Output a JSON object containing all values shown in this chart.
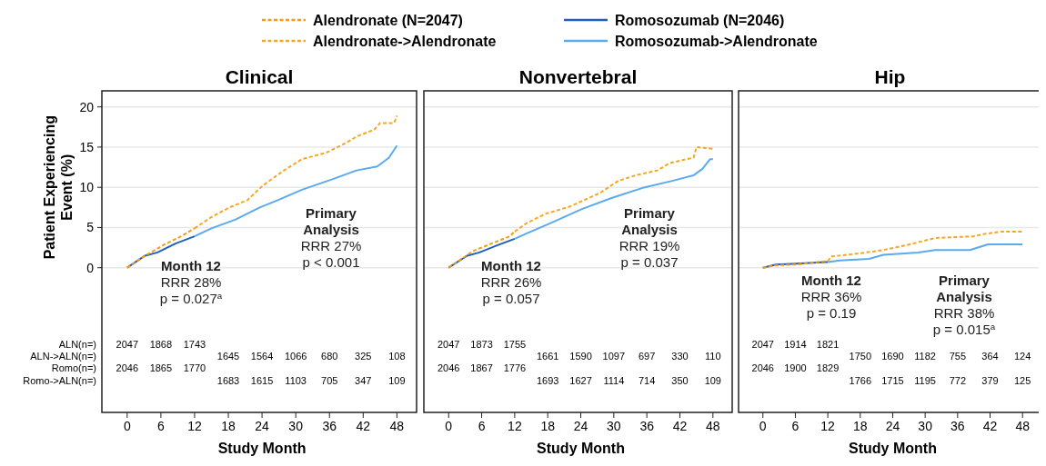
{
  "chart_data": [
    {
      "type": "line",
      "title": "Clinical",
      "xlabel": "Study Month",
      "ylabel": "Patient Experiencing Event (%)",
      "xlim": [
        -4.5,
        51.5
      ],
      "ylim": [
        -18,
        22
      ],
      "xticks": [
        0,
        6,
        12,
        18,
        24,
        30,
        36,
        42,
        48
      ],
      "yticks": [
        0,
        5,
        10,
        15,
        20
      ],
      "grid": "y",
      "legend": "top",
      "series": [
        {
          "name": "Alendronate (N=2047)",
          "color": "#f39c12",
          "line_style": "dashed",
          "x": [
            0,
            3.2,
            6.4,
            9.6,
            12
          ],
          "values": [
            0,
            1.5,
            2.8,
            3.9,
            4.9
          ]
        },
        {
          "name": "Alendronate->Alendronate",
          "color": "#f5a623",
          "line_style": "dashed",
          "x": [
            12,
            15,
            18.2,
            21.4,
            24.1,
            27.9,
            31.1,
            35.4,
            38.6,
            40.8,
            44,
            45,
            47.5,
            48
          ],
          "values": [
            4.9,
            6.3,
            7.5,
            8.4,
            10.2,
            12.1,
            13.5,
            14.3,
            15.4,
            16.3,
            17.2,
            18,
            18,
            18.9
          ]
        },
        {
          "name": "Romosozumab (N=2046)",
          "color": "#1f5fbf",
          "line_style": "solid",
          "x": [
            0,
            3.2,
            5.4,
            8.6,
            12
          ],
          "values": [
            0,
            1.5,
            1.9,
            3,
            3.9
          ]
        },
        {
          "name": "Romosozumab->Alendronate",
          "color": "#5aaaf0",
          "line_style": "solid",
          "x": [
            12,
            15,
            19.3,
            23.6,
            26.8,
            31.1,
            36.5,
            40.8,
            44.5,
            46.6,
            48
          ],
          "values": [
            3.9,
            4.9,
            6,
            7.5,
            8.4,
            9.7,
            11,
            12.1,
            12.6,
            13.7,
            15.2
          ]
        }
      ],
      "annotations": [
        "Month 12\nRRR 28%\np = 0.027$^{a}$",
        "Primary\nAnalysis\nRRR 27%\np < 0.001",
        "ALN(n=)",
        "ALN->ALN(n=)",
        "Romo(n=)",
        "Romo->ALN(n=)",
        "2047 1868 1743",
        "1645 1564 1066 680 325 108",
        "2046 1865 1770",
        "1683 1615 1103 705 347 109"
      ]
    },
    {
      "type": "line",
      "title": "Nonvertebral",
      "xlabel": "Study Month",
      "xlim": [
        -4.5,
        51.5
      ],
      "ylim": [
        -18,
        22
      ],
      "xticks": [
        0,
        6,
        12,
        18,
        24,
        30,
        36,
        42,
        48
      ],
      "yticks": [
        0,
        5,
        10,
        15,
        20
      ],
      "grid": "y",
      "tick_labels": "x",
      "series": [
        {
          "color": "#f39c12",
          "line_style": "dashed",
          "x": [
            0,
            4.5,
            7.8,
            11.1,
            12
          ],
          "values": [
            0,
            2.1,
            3,
            3.9,
            4.5
          ]
        },
        {
          "color": "#f5a623",
          "line_style": "dashed",
          "x": [
            12,
            14.3,
            17.6,
            22,
            27.5,
            30.8,
            34,
            37.9,
            40.1,
            44.5,
            45,
            48
          ],
          "values": [
            4.5,
            5.6,
            6.7,
            7.6,
            9.3,
            10.8,
            11.5,
            12.1,
            13,
            13.7,
            15,
            14.8
          ]
        },
        {
          "color": "#1f5fbf",
          "line_style": "solid",
          "x": [
            0,
            3.4,
            5.6,
            8.9,
            12
          ],
          "values": [
            0,
            1.5,
            1.9,
            2.8,
            3.6
          ]
        },
        {
          "color": "#5aaaf0",
          "line_style": "solid",
          "x": [
            12,
            14.3,
            18.7,
            24.2,
            29.7,
            35.1,
            40.6,
            44.5,
            46.1,
            47.5,
            48
          ],
          "values": [
            3.6,
            4.3,
            5.6,
            7.3,
            8.7,
            9.9,
            10.8,
            11.5,
            12.3,
            13.5,
            13.5
          ]
        }
      ],
      "annotations": [
        "Month 12\nRRR 26%\np = 0.057",
        "Primary\nAnalysis\nRRR 19%\np = 0.037",
        "2047 1873 1755",
        "1661 1590 1097 697 330 110",
        "2046 1867 1776",
        "1693 1627 1114 714 350 109"
      ]
    },
    {
      "type": "line",
      "title": "Hip",
      "xlabel": "Study Month",
      "xlim": [
        -4.5,
        51.5
      ],
      "ylim": [
        -18,
        22
      ],
      "xticks": [
        0,
        6,
        12,
        18,
        24,
        30,
        36,
        42,
        48
      ],
      "yticks": [
        0,
        5,
        10,
        15,
        20
      ],
      "grid": "y",
      "tick_labels": "x",
      "series": [
        {
          "color": "#f39c12",
          "line_style": "dashed",
          "x": [
            0,
            2.4,
            6.2,
            11.5,
            12
          ],
          "values": [
            0,
            0.3,
            0.4,
            0.8,
            0.8
          ]
        },
        {
          "color": "#f5a623",
          "line_style": "dashed",
          "x": [
            12,
            12.6,
            16.9,
            22.3,
            26.5,
            31.9,
            38.9,
            41,
            44.2,
            48
          ],
          "values": [
            0.8,
            1.4,
            1.7,
            2.2,
            2.8,
            3.7,
            3.9,
            4.2,
            4.5,
            4.5
          ]
        },
        {
          "color": "#1f5fbf",
          "line_style": "solid",
          "x": [
            0,
            2.4,
            6.2,
            11.5,
            12
          ],
          "values": [
            0,
            0.4,
            0.5,
            0.7,
            0.7
          ]
        },
        {
          "color": "#5aaaf0",
          "line_style": "solid",
          "x": [
            12,
            14.2,
            19.6,
            22.3,
            28.7,
            31.9,
            38.3,
            41.6,
            48
          ],
          "values": [
            0.7,
            0.9,
            1.1,
            1.6,
            1.9,
            2.2,
            2.2,
            2.9,
            2.9
          ]
        }
      ],
      "annotations": [
        "Month 12\nRRR 36%\np = 0.19",
        "Primary\nAnalysis\nRRR 38%\np = 0.015$^{a}$",
        "2047 1914 1821",
        "1750 1690 1182 755 364 124",
        "2046 1900 1829",
        "1766 1715 1195 772 379 125"
      ]
    }
  ]
}
